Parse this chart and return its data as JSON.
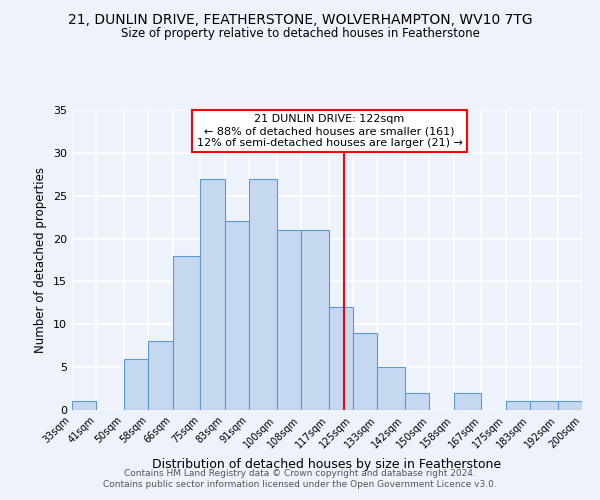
{
  "title1": "21, DUNLIN DRIVE, FEATHERSTONE, WOLVERHAMPTON, WV10 7TG",
  "title2": "Size of property relative to detached houses in Featherstone",
  "xlabel": "Distribution of detached houses by size in Featherstone",
  "ylabel": "Number of detached properties",
  "bar_edges": [
    33,
    41,
    50,
    58,
    66,
    75,
    83,
    91,
    100,
    108,
    117,
    125,
    133,
    142,
    150,
    158,
    167,
    175,
    183,
    192,
    200
  ],
  "bar_heights": [
    1,
    0,
    6,
    8,
    18,
    27,
    22,
    27,
    21,
    21,
    12,
    9,
    5,
    2,
    0,
    2,
    0,
    1,
    1,
    1
  ],
  "tick_labels": [
    "33sqm",
    "41sqm",
    "50sqm",
    "58sqm",
    "66sqm",
    "75sqm",
    "83sqm",
    "91sqm",
    "100sqm",
    "108sqm",
    "117sqm",
    "125sqm",
    "133sqm",
    "142sqm",
    "150sqm",
    "158sqm",
    "167sqm",
    "175sqm",
    "183sqm",
    "192sqm",
    "200sqm"
  ],
  "bar_facecolor": "#c5d8f0",
  "bar_edgecolor": "#5b9bd5",
  "vline_x": 122,
  "vline_color": "red",
  "annotation_title": "21 DUNLIN DRIVE: 122sqm",
  "annotation_line1": "← 88% of detached houses are smaller (161)",
  "annotation_line2": "12% of semi-detached houses are larger (21) →",
  "annotation_box_color": "red",
  "annotation_bg": "white",
  "ylim": [
    0,
    35
  ],
  "yticks": [
    0,
    5,
    10,
    15,
    20,
    25,
    30,
    35
  ],
  "footer1": "Contains HM Land Registry data © Crown copyright and database right 2024.",
  "footer2": "Contains public sector information licensed under the Open Government Licence v3.0.",
  "background_color": "#eef2fb",
  "grid_color": "white"
}
